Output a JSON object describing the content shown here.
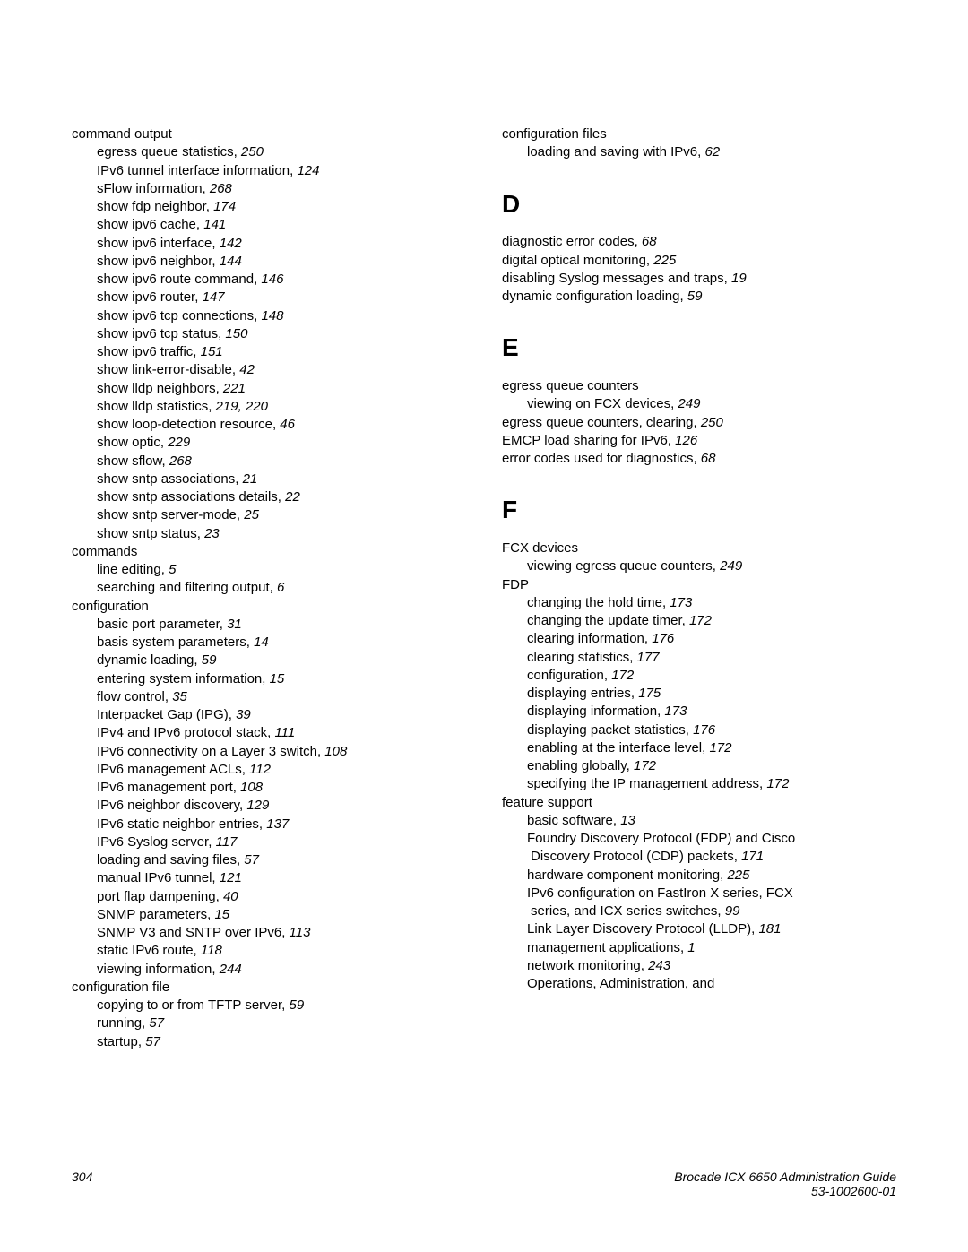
{
  "left_column": [
    {
      "level": 0,
      "text": "command output"
    },
    {
      "level": 1,
      "text": "egress queue statistics, ",
      "page": "250"
    },
    {
      "level": 1,
      "text": "IPv6 tunnel interface information, ",
      "page": "124"
    },
    {
      "level": 1,
      "text": "sFlow information, ",
      "page": "268"
    },
    {
      "level": 1,
      "text": "show fdp neighbor, ",
      "page": "174"
    },
    {
      "level": 1,
      "text": "show ipv6 cache, ",
      "page": "141"
    },
    {
      "level": 1,
      "text": "show ipv6 interface, ",
      "page": "142"
    },
    {
      "level": 1,
      "text": "show ipv6 neighbor, ",
      "page": "144"
    },
    {
      "level": 1,
      "text": "show ipv6 route command, ",
      "page": "146"
    },
    {
      "level": 1,
      "text": "show ipv6 router, ",
      "page": "147"
    },
    {
      "level": 1,
      "text": "show ipv6 tcp connections, ",
      "page": "148"
    },
    {
      "level": 1,
      "text": "show ipv6 tcp status, ",
      "page": "150"
    },
    {
      "level": 1,
      "text": "show ipv6 traffic, ",
      "page": "151"
    },
    {
      "level": 1,
      "text": "show link-error-disable, ",
      "page": "42"
    },
    {
      "level": 1,
      "text": "show lldp neighbors, ",
      "page": "221"
    },
    {
      "level": 1,
      "text": "show lldp statistics, ",
      "page": "219, 220"
    },
    {
      "level": 1,
      "text": "show loop-detection resource, ",
      "page": "46"
    },
    {
      "level": 1,
      "text": "show optic, ",
      "page": "229"
    },
    {
      "level": 1,
      "text": "show sflow, ",
      "page": "268"
    },
    {
      "level": 1,
      "text": "show sntp associations, ",
      "page": "21"
    },
    {
      "level": 1,
      "text": "show sntp associations details, ",
      "page": "22"
    },
    {
      "level": 1,
      "text": "show sntp server-mode, ",
      "page": "25"
    },
    {
      "level": 1,
      "text": "show sntp status, ",
      "page": "23"
    },
    {
      "level": 0,
      "text": "commands"
    },
    {
      "level": 1,
      "text": "line editing, ",
      "page": "5"
    },
    {
      "level": 1,
      "text": "searching and filtering output, ",
      "page": "6"
    },
    {
      "level": 0,
      "text": "configuration"
    },
    {
      "level": 1,
      "text": "basic port parameter, ",
      "page": "31"
    },
    {
      "level": 1,
      "text": "basis system parameters, ",
      "page": "14"
    },
    {
      "level": 1,
      "text": "dynamic loading, ",
      "page": "59"
    },
    {
      "level": 1,
      "text": "entering system information, ",
      "page": "15"
    },
    {
      "level": 1,
      "text": "flow control, ",
      "page": "35"
    },
    {
      "level": 1,
      "text": "Interpacket Gap (IPG), ",
      "page": "39"
    },
    {
      "level": 1,
      "text": "IPv4 and IPv6 protocol stack, ",
      "page": "111"
    },
    {
      "level": 1,
      "text": "IPv6 connectivity on a Layer 3 switch, ",
      "page": "108"
    },
    {
      "level": 1,
      "text": "IPv6 management ACLs, ",
      "page": "112"
    },
    {
      "level": 1,
      "text": "IPv6 management port, ",
      "page": "108"
    },
    {
      "level": 1,
      "text": "IPv6 neighbor discovery, ",
      "page": "129"
    },
    {
      "level": 1,
      "text": "IPv6 static neighbor entries, ",
      "page": "137"
    },
    {
      "level": 1,
      "text": "IPv6 Syslog server, ",
      "page": "117"
    },
    {
      "level": 1,
      "text": "loading and saving files, ",
      "page": "57"
    },
    {
      "level": 1,
      "text": "manual IPv6 tunnel, ",
      "page": "121"
    },
    {
      "level": 1,
      "text": "port flap dampening, ",
      "page": "40"
    },
    {
      "level": 1,
      "text": "SNMP parameters, ",
      "page": "15"
    },
    {
      "level": 1,
      "text": "SNMP V3 and SNTP over IPv6, ",
      "page": "113"
    },
    {
      "level": 1,
      "text": "static IPv6 route, ",
      "page": "118"
    },
    {
      "level": 1,
      "text": "viewing information, ",
      "page": "244"
    },
    {
      "level": 0,
      "text": "configuration file"
    },
    {
      "level": 1,
      "text": "copying to or from TFTP server, ",
      "page": "59"
    },
    {
      "level": 1,
      "text": "running, ",
      "page": "57"
    },
    {
      "level": 1,
      "text": "startup, ",
      "page": "57"
    }
  ],
  "right_column": [
    {
      "level": 0,
      "text": "configuration files"
    },
    {
      "level": 1,
      "text": "loading and saving with IPv6, ",
      "page": "62"
    },
    {
      "section": "D"
    },
    {
      "level": 0,
      "text": "diagnostic error codes, ",
      "page": "68"
    },
    {
      "level": 0,
      "text": "digital optical monitoring, ",
      "page": "225"
    },
    {
      "level": 0,
      "text": "disabling Syslog messages and traps, ",
      "page": "19"
    },
    {
      "level": 0,
      "text": "dynamic configuration loading, ",
      "page": "59"
    },
    {
      "section": "E"
    },
    {
      "level": 0,
      "text": "egress queue counters"
    },
    {
      "level": 1,
      "text": "viewing on FCX devices, ",
      "page": "249"
    },
    {
      "level": 0,
      "text": "egress queue counters, clearing, ",
      "page": "250"
    },
    {
      "level": 0,
      "text": "EMCP load sharing for IPv6, ",
      "page": "126"
    },
    {
      "level": 0,
      "text": "error codes used for diagnostics, ",
      "page": "68"
    },
    {
      "section": "F"
    },
    {
      "level": 0,
      "text": "FCX devices"
    },
    {
      "level": 1,
      "text": "viewing egress queue counters, ",
      "page": "249"
    },
    {
      "level": 0,
      "text": "FDP"
    },
    {
      "level": 1,
      "text": "changing the hold time, ",
      "page": "173"
    },
    {
      "level": 1,
      "text": "changing the update timer, ",
      "page": "172"
    },
    {
      "level": 1,
      "text": "clearing information, ",
      "page": "176"
    },
    {
      "level": 1,
      "text": "clearing statistics, ",
      "page": "177"
    },
    {
      "level": 1,
      "text": "configuration, ",
      "page": "172"
    },
    {
      "level": 1,
      "text": "displaying entries, ",
      "page": "175"
    },
    {
      "level": 1,
      "text": "displaying information, ",
      "page": "173"
    },
    {
      "level": 1,
      "text": "displaying packet statistics, ",
      "page": "176"
    },
    {
      "level": 1,
      "text": "enabling at the interface level, ",
      "page": "172"
    },
    {
      "level": 1,
      "text": "enabling globally, ",
      "page": "172"
    },
    {
      "level": 1,
      "text": "specifying the IP management address, ",
      "page": "172"
    },
    {
      "level": 0,
      "text": "feature support"
    },
    {
      "level": 1,
      "text": "basic software, ",
      "page": "13"
    },
    {
      "level": 1,
      "text": "Foundry Discovery Protocol (FDP) and Cisco"
    },
    {
      "level": 1,
      "wrap": true,
      "text": " Discovery Protocol (CDP) packets, ",
      "page": "171"
    },
    {
      "level": 1,
      "text": "hardware component monitoring, ",
      "page": "225"
    },
    {
      "level": 1,
      "text": "IPv6 configuration on FastIron X series, FCX"
    },
    {
      "level": 1,
      "wrap": true,
      "text": " series, and ICX series switches, ",
      "page": "99"
    },
    {
      "level": 1,
      "text": "Link Layer Discovery Protocol (LLDP), ",
      "page": "181"
    },
    {
      "level": 1,
      "text": "management applications, ",
      "page": "1"
    },
    {
      "level": 1,
      "text": "network monitoring, ",
      "page": "243"
    },
    {
      "level": 1,
      "text": "Operations, Administration, and"
    }
  ],
  "footer": {
    "page": "304",
    "title": "Brocade ICX 6650 Administration Guide",
    "docnum": "53-1002600-01"
  }
}
